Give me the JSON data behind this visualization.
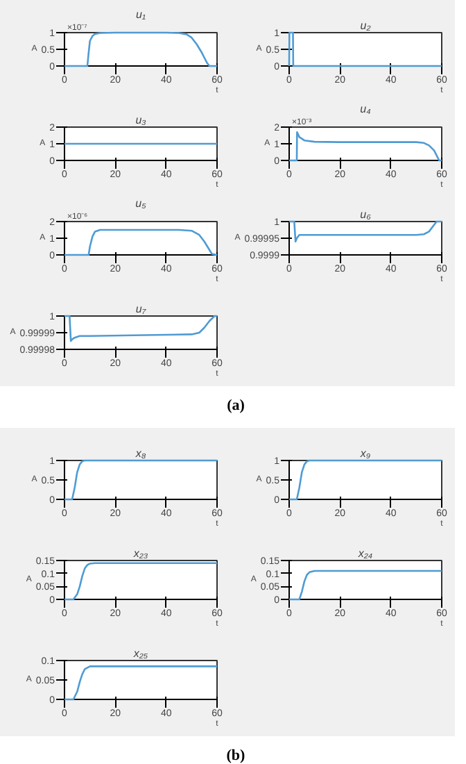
{
  "chart_data": [
    {
      "type": "line",
      "title": "u₁",
      "xlabel": "t",
      "ylabel": "A",
      "annotations": [
        "×10⁻⁷"
      ],
      "color": "#4f9bd3",
      "xlim": [
        0,
        60
      ],
      "ylim": [
        0,
        1
      ],
      "xticks": [
        0,
        20,
        40,
        60
      ],
      "yticks": [
        0,
        0.5,
        1
      ],
      "x": [
        0,
        9,
        9.5,
        10,
        11,
        12,
        14,
        20,
        40,
        45,
        48,
        50,
        52,
        54,
        55,
        56,
        57,
        60
      ],
      "values": [
        0,
        0,
        0.4,
        0.75,
        0.9,
        0.96,
        0.99,
        1,
        1,
        0.99,
        0.95,
        0.85,
        0.65,
        0.4,
        0.25,
        0.1,
        0,
        0
      ]
    },
    {
      "type": "line",
      "title": "u₂",
      "xlabel": "t",
      "ylabel": "A",
      "color": "#4f9bd3",
      "xlim": [
        0,
        60
      ],
      "ylim": [
        0,
        1
      ],
      "xticks": [
        0,
        20,
        40,
        60
      ],
      "yticks": [
        0,
        0.5,
        1
      ],
      "x": [
        0,
        0.1,
        0.5,
        1.5,
        1.6,
        2,
        60
      ],
      "values": [
        0,
        1,
        1,
        1,
        0,
        0,
        0
      ]
    },
    {
      "type": "line",
      "title": "u₃",
      "xlabel": "t",
      "ylabel": "A",
      "color": "#4f9bd3",
      "xlim": [
        0,
        60
      ],
      "ylim": [
        0,
        2
      ],
      "xticks": [
        0,
        20,
        40,
        60
      ],
      "yticks": [
        0,
        1,
        2
      ],
      "x": [
        0,
        60
      ],
      "values": [
        1,
        1
      ]
    },
    {
      "type": "line",
      "title": "u₄",
      "xlabel": "t",
      "ylabel": "A",
      "annotations": [
        "×10⁻³"
      ],
      "color": "#4f9bd3",
      "xlim": [
        0,
        60
      ],
      "ylim": [
        0,
        2
      ],
      "xticks": [
        0,
        20,
        40,
        60
      ],
      "yticks": [
        0,
        1,
        2
      ],
      "x": [
        0,
        3,
        3.1,
        4,
        6,
        10,
        20,
        50,
        53,
        55,
        57,
        58,
        59,
        60
      ],
      "values": [
        0,
        0,
        1.7,
        1.4,
        1.2,
        1.12,
        1.1,
        1.1,
        1.05,
        0.9,
        0.6,
        0.3,
        0,
        0
      ]
    },
    {
      "type": "line",
      "title": "u₅",
      "xlabel": "t",
      "ylabel": "A",
      "annotations": [
        "×10⁻⁶"
      ],
      "color": "#4f9bd3",
      "xlim": [
        0,
        60
      ],
      "ylim": [
        0,
        2
      ],
      "xticks": [
        0,
        20,
        40,
        60
      ],
      "yticks": [
        0,
        1,
        2
      ],
      "x": [
        0,
        9.5,
        10,
        11,
        12,
        14,
        20,
        45,
        50,
        53,
        55,
        57,
        58,
        60
      ],
      "values": [
        0,
        0,
        0.5,
        1.1,
        1.4,
        1.5,
        1.5,
        1.5,
        1.45,
        1.2,
        0.8,
        0.3,
        0.05,
        0
      ]
    },
    {
      "type": "line",
      "title": "u₆",
      "xlabel": "t",
      "ylabel": "A",
      "color": "#4f9bd3",
      "xlim": [
        0,
        60
      ],
      "ylim": [
        0.9999,
        1
      ],
      "xticks": [
        0,
        20,
        40,
        60
      ],
      "yticks": [
        0.9999,
        0.99995,
        1
      ],
      "x": [
        0,
        2,
        2.5,
        3,
        4,
        10,
        50,
        53,
        55,
        57,
        58,
        60
      ],
      "values": [
        1,
        1,
        0.99994,
        0.99995,
        0.99996,
        0.99996,
        0.99996,
        0.999962,
        0.99997,
        0.99999,
        1,
        1
      ]
    },
    {
      "type": "line",
      "title": "u₇",
      "xlabel": "t",
      "ylabel": "A",
      "color": "#4f9bd3",
      "xlim": [
        0,
        60
      ],
      "ylim": [
        0.99998,
        1
      ],
      "xticks": [
        0,
        20,
        40,
        60
      ],
      "yticks": [
        0.99998,
        0.99999,
        1
      ],
      "x": [
        0,
        2,
        2.5,
        3,
        4,
        6,
        10,
        50,
        53,
        55,
        57,
        59,
        60
      ],
      "values": [
        1,
        1,
        0.999985,
        0.999986,
        0.999987,
        0.999988,
        0.999988,
        0.999989,
        0.99999,
        0.999993,
        0.999997,
        1,
        1
      ]
    },
    {
      "type": "other",
      "annotations": [
        "(a)"
      ]
    },
    {
      "type": "line",
      "title": "x₈",
      "xlabel": "t",
      "ylabel": "A",
      "color": "#4f9bd3",
      "xlim": [
        0,
        60
      ],
      "ylim": [
        0,
        1
      ],
      "xticks": [
        0,
        20,
        40,
        60
      ],
      "yticks": [
        0,
        0.5,
        1
      ],
      "x": [
        0,
        3,
        4,
        5,
        6,
        7,
        8,
        60
      ],
      "values": [
        0,
        0,
        0.3,
        0.7,
        0.9,
        0.98,
        1,
        1
      ]
    },
    {
      "type": "line",
      "title": "x₉",
      "xlabel": "t",
      "ylabel": "A",
      "color": "#4f9bd3",
      "xlim": [
        0,
        60
      ],
      "ylim": [
        0,
        1
      ],
      "xticks": [
        0,
        20,
        40,
        60
      ],
      "yticks": [
        0,
        0.5,
        1
      ],
      "x": [
        0,
        3,
        4,
        5,
        6,
        7,
        8,
        60
      ],
      "values": [
        0,
        0,
        0.3,
        0.7,
        0.9,
        0.98,
        1,
        1
      ]
    },
    {
      "type": "line",
      "title": "x₂₃",
      "xlabel": "t",
      "ylabel": "A",
      "color": "#4f9bd3",
      "xlim": [
        0,
        60
      ],
      "ylim": [
        0,
        0.15
      ],
      "xticks": [
        0,
        20,
        40,
        60
      ],
      "yticks": [
        0,
        0.05,
        0.1,
        0.15
      ],
      "x": [
        0,
        3.5,
        5,
        6,
        7,
        8,
        9,
        10,
        12,
        60
      ],
      "values": [
        0,
        0,
        0.02,
        0.05,
        0.09,
        0.12,
        0.133,
        0.138,
        0.14,
        0.14
      ]
    },
    {
      "type": "line",
      "title": "x₂₄",
      "xlabel": "t",
      "ylabel": "A",
      "color": "#4f9bd3",
      "xlim": [
        0,
        60
      ],
      "ylim": [
        0,
        0.15
      ],
      "xticks": [
        0,
        20,
        40,
        60
      ],
      "yticks": [
        0,
        0.05,
        0.1,
        0.15
      ],
      "x": [
        0,
        4,
        5,
        6,
        7,
        8,
        10,
        60
      ],
      "values": [
        0,
        0,
        0.03,
        0.07,
        0.095,
        0.105,
        0.11,
        0.11
      ]
    },
    {
      "type": "line",
      "title": "x₂₅",
      "xlabel": "t",
      "ylabel": "A",
      "color": "#4f9bd3",
      "xlim": [
        0,
        60
      ],
      "ylim": [
        0,
        0.1
      ],
      "xticks": [
        0,
        20,
        40,
        60
      ],
      "yticks": [
        0,
        0.05,
        0.1
      ],
      "x": [
        0,
        3.5,
        5,
        6,
        7,
        8,
        10,
        60
      ],
      "values": [
        0,
        0,
        0.02,
        0.045,
        0.065,
        0.078,
        0.085,
        0.085
      ]
    },
    {
      "type": "other",
      "annotations": [
        "(b)"
      ]
    }
  ]
}
